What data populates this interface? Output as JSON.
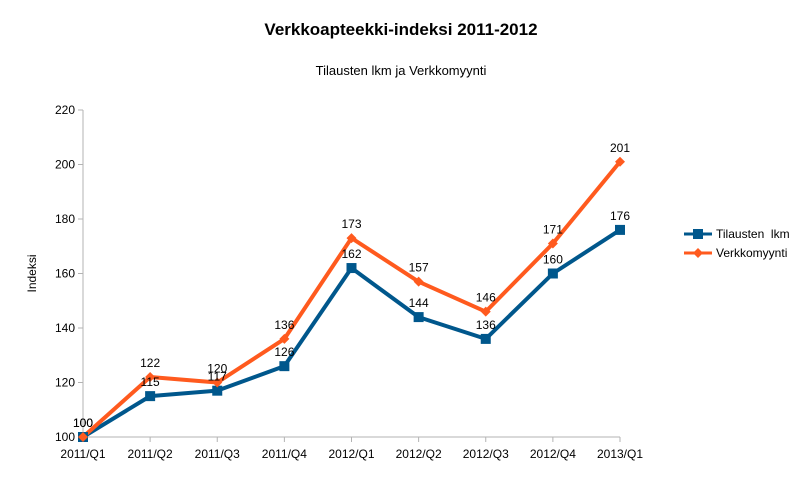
{
  "chart_data": {
    "type": "line",
    "title": "Verkkoapteekki-indeksi 2011-2012",
    "subtitle": "Tilausten lkm ja Verkkomyynti",
    "xlabel": "",
    "ylabel": "Indeksi",
    "ylim": [
      100,
      220
    ],
    "yticks": [
      100,
      120,
      140,
      160,
      180,
      200,
      220
    ],
    "grid": false,
    "legend_position": "right",
    "categories": [
      "2011/Q1",
      "2011/Q2",
      "2011/Q3",
      "2011/Q4",
      "2012/Q1",
      "2012/Q2",
      "2012/Q3",
      "2012/Q4",
      "2013/Q1"
    ],
    "series": [
      {
        "name": "Tilausten  lkm",
        "color": "#00578c",
        "marker": "square",
        "values": [
          100,
          115,
          117,
          126,
          162,
          144,
          136,
          160,
          176
        ]
      },
      {
        "name": "Verkkomyynti",
        "color": "#ff5a1e",
        "marker": "diamond",
        "values": [
          100,
          122,
          120,
          136,
          173,
          157,
          146,
          171,
          201
        ]
      }
    ]
  }
}
